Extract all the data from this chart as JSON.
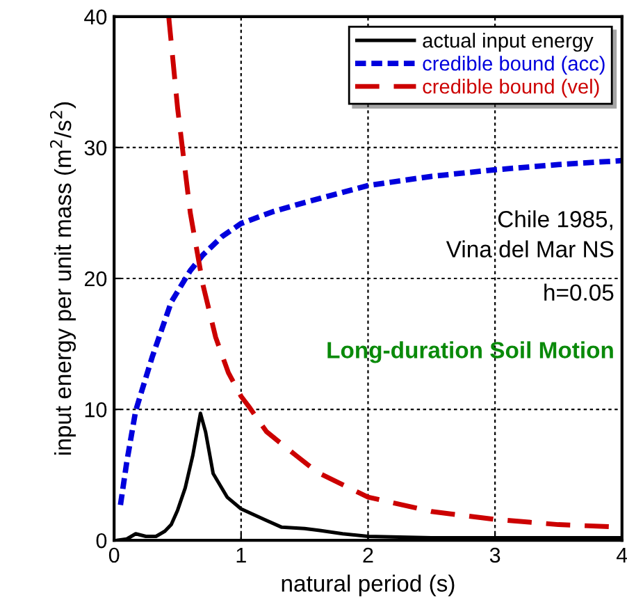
{
  "chart_data": {
    "type": "line",
    "xlabel": "natural period (s)",
    "ylabel": "input energy per unit mass (m$^{2}$/s$^{2}$)",
    "xlim": [
      0,
      4
    ],
    "ylim": [
      0,
      40
    ],
    "xticks": [
      0,
      1,
      2,
      3,
      4
    ],
    "yticks": [
      0,
      10,
      20,
      30,
      40
    ],
    "grid": true,
    "legend": "top right",
    "annotations": [
      "Chile 1985,\nVina del Mar NS",
      "h=0.05",
      "Long-duration Soil Motion"
    ],
    "series": [
      {
        "name": "actual input energy",
        "color": "#000000",
        "line_style": "solid",
        "x": [
          0.02,
          0.1,
          0.17,
          0.25,
          0.33,
          0.4,
          0.45,
          0.5,
          0.56,
          0.62,
          0.68,
          0.72,
          0.78,
          0.89,
          1.0,
          1.18,
          1.32,
          1.5,
          1.62,
          1.8,
          2.0,
          2.5,
          3.0,
          3.5,
          4.0
        ],
        "values": [
          0.0,
          0.1,
          0.5,
          0.3,
          0.3,
          0.7,
          1.2,
          2.3,
          4.0,
          6.5,
          9.7,
          8.3,
          5.1,
          3.3,
          2.4,
          1.6,
          1.0,
          0.9,
          0.75,
          0.5,
          0.3,
          0.2,
          0.2,
          0.2,
          0.2
        ]
      },
      {
        "name": "credible bound (acc)",
        "color": "#0000dd",
        "line_style": "dotted",
        "x": [
          0.05,
          0.1,
          0.17,
          0.3,
          0.45,
          0.6,
          0.7,
          0.85,
          1.0,
          1.25,
          1.5,
          2.0,
          2.5,
          3.0,
          3.5,
          4.0
        ],
        "values": [
          2.7,
          6.0,
          9.9,
          14.0,
          18.2,
          20.6,
          21.8,
          23.2,
          24.2,
          25.1,
          25.8,
          27.1,
          27.8,
          28.3,
          28.7,
          29.0
        ]
      },
      {
        "name": "credible bound (vel)",
        "color": "#cc0000",
        "line_style": "dashed",
        "x": [
          0.43,
          0.5,
          0.6,
          0.7,
          0.8,
          0.9,
          1.0,
          1.07,
          1.2,
          1.43,
          1.6,
          2.0,
          2.5,
          3.0,
          3.5,
          4.0
        ],
        "values": [
          40,
          33,
          25,
          19.5,
          15.5,
          12.8,
          11.0,
          10.1,
          8.3,
          6.5,
          5.2,
          3.3,
          2.2,
          1.6,
          1.2,
          1.0
        ]
      }
    ]
  }
}
